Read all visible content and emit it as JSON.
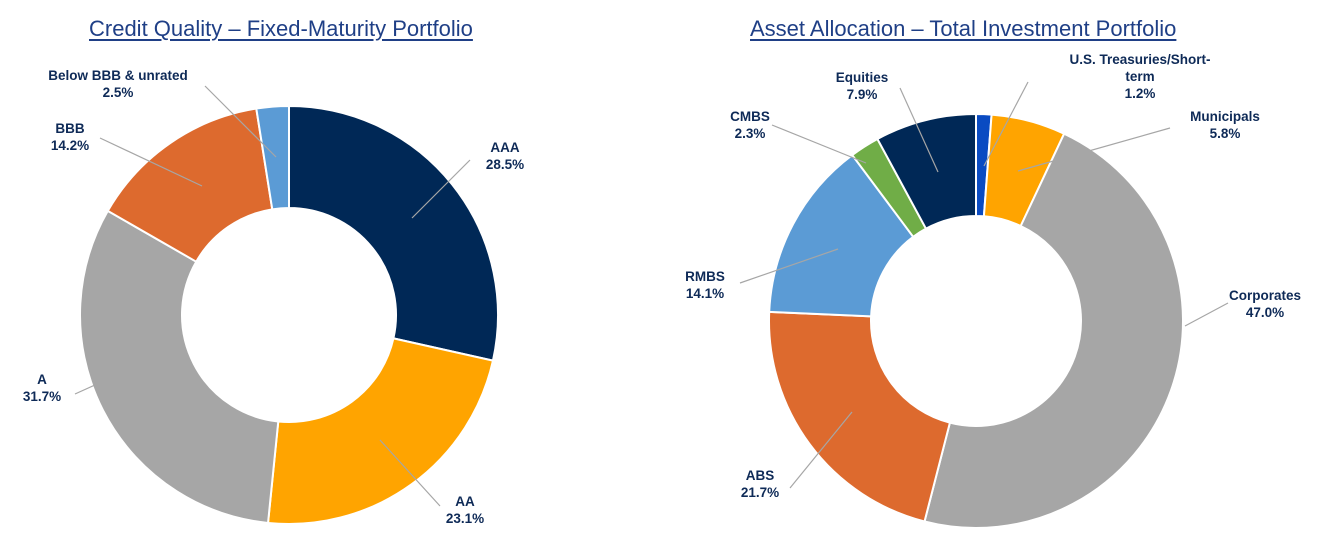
{
  "chart_data": [
    {
      "type": "pie",
      "title": "Credit Quality – Fixed-Maturity Portfolio",
      "donut": true,
      "slices": [
        {
          "label": "AAA",
          "value": 28.5,
          "display": "28.5%",
          "color": "#002856"
        },
        {
          "label": "AA",
          "value": 23.1,
          "display": "23.1%",
          "color": "#ffa400"
        },
        {
          "label": "A",
          "value": 31.7,
          "display": "31.7%",
          "color": "#a6a6a6"
        },
        {
          "label": "BBB",
          "value": 14.2,
          "display": "14.2%",
          "color": "#dd6a2e"
        },
        {
          "label": "Below BBB & unrated",
          "value": 2.5,
          "display": "2.5%",
          "color": "#5b9bd5"
        }
      ]
    },
    {
      "type": "pie",
      "title": "Asset Allocation – Total Investment Portfolio",
      "donut": true,
      "slices": [
        {
          "label": "U.S. Treasuries/Short-term",
          "label_lines": [
            "U.S. Treasuries/Short-",
            "term"
          ],
          "value": 1.2,
          "display": "1.2%",
          "color": "#0a4bc2"
        },
        {
          "label": "Municipals",
          "value": 5.8,
          "display": "5.8%",
          "color": "#ffa400"
        },
        {
          "label": "Corporates",
          "value": 47.0,
          "display": "47.0%",
          "color": "#a6a6a6"
        },
        {
          "label": "ABS",
          "value": 21.7,
          "display": "21.7%",
          "color": "#dd6a2e"
        },
        {
          "label": "RMBS",
          "value": 14.1,
          "display": "14.1%",
          "color": "#5b9bd5"
        },
        {
          "label": "CMBS",
          "value": 2.3,
          "display": "2.3%",
          "color": "#70ad47"
        },
        {
          "label": "Equities",
          "value": 7.9,
          "display": "7.9%",
          "color": "#002856"
        }
      ]
    }
  ]
}
